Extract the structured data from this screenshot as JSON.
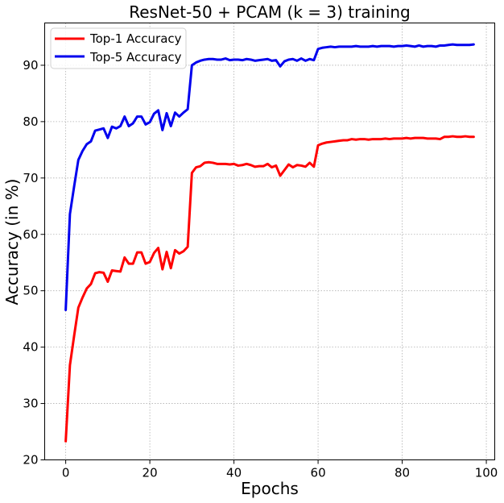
{
  "chart_data": {
    "type": "line",
    "title": "ResNet-50 + PCAM (k = 3) training",
    "xlabel": "Epochs",
    "ylabel": "Accuracy (in %)",
    "xlim": [
      -5,
      102
    ],
    "ylim": [
      20,
      97.5
    ],
    "xticks": [
      0,
      20,
      40,
      60,
      80,
      100
    ],
    "yticks": [
      20,
      30,
      40,
      50,
      60,
      70,
      80,
      90
    ],
    "grid": true,
    "legend_position": "top-left",
    "x": [
      0,
      1,
      2,
      3,
      4,
      5,
      6,
      7,
      8,
      9,
      10,
      11,
      12,
      13,
      14,
      15,
      16,
      17,
      18,
      19,
      20,
      21,
      22,
      23,
      24,
      25,
      26,
      27,
      28,
      29,
      30,
      31,
      32,
      33,
      34,
      35,
      36,
      37,
      38,
      39,
      40,
      41,
      42,
      43,
      44,
      45,
      46,
      47,
      48,
      49,
      50,
      51,
      52,
      53,
      54,
      55,
      56,
      57,
      58,
      59,
      60,
      61,
      62,
      63,
      64,
      65,
      66,
      67,
      68,
      69,
      70,
      71,
      72,
      73,
      74,
      75,
      76,
      77,
      78,
      79,
      80,
      81,
      82,
      83,
      84,
      85,
      86,
      87,
      88,
      89,
      90,
      91,
      92,
      93,
      94,
      95,
      96,
      97
    ],
    "series": [
      {
        "name": "Top-1 Accuracy",
        "color": "#ff0000",
        "values": [
          23.3,
          36.8,
          42.0,
          47.0,
          48.8,
          50.4,
          51.2,
          53.1,
          53.3,
          53.2,
          51.6,
          53.6,
          53.5,
          53.4,
          55.9,
          54.8,
          54.8,
          56.8,
          56.8,
          54.8,
          55.1,
          56.7,
          57.6,
          53.8,
          56.9,
          54.0,
          57.2,
          56.6,
          57.0,
          57.8,
          70.9,
          71.9,
          72.1,
          72.7,
          72.8,
          72.7,
          72.5,
          72.5,
          72.5,
          72.4,
          72.5,
          72.2,
          72.3,
          72.5,
          72.3,
          72.0,
          72.1,
          72.1,
          72.5,
          71.9,
          72.2,
          70.4,
          71.4,
          72.4,
          71.9,
          72.3,
          72.2,
          72.0,
          72.7,
          72.0,
          75.8,
          76.1,
          76.3,
          76.4,
          76.5,
          76.6,
          76.7,
          76.7,
          76.9,
          76.8,
          76.9,
          76.9,
          76.8,
          76.9,
          76.9,
          76.9,
          77.0,
          76.9,
          77.0,
          77.0,
          77.0,
          77.1,
          77.0,
          77.1,
          77.1,
          77.1,
          77.0,
          77.0,
          77.0,
          76.9,
          77.3,
          77.3,
          77.4,
          77.3,
          77.3,
          77.4,
          77.3,
          77.3
        ]
      },
      {
        "name": "Top-5 Accuracy",
        "color": "#0000ee",
        "values": [
          46.6,
          63.6,
          68.5,
          73.2,
          74.8,
          76.0,
          76.5,
          78.4,
          78.6,
          78.8,
          77.1,
          79.1,
          78.8,
          79.2,
          80.9,
          79.2,
          79.7,
          80.9,
          80.9,
          79.5,
          79.9,
          81.4,
          82.0,
          78.5,
          81.5,
          79.2,
          81.6,
          80.9,
          81.6,
          82.2,
          90.0,
          90.5,
          90.8,
          91.0,
          91.1,
          91.1,
          91.0,
          91.0,
          91.2,
          90.9,
          91.0,
          91.0,
          90.9,
          91.1,
          91.0,
          90.8,
          90.9,
          91.0,
          91.1,
          90.8,
          90.9,
          89.8,
          90.7,
          91.0,
          91.1,
          90.8,
          91.2,
          90.8,
          91.1,
          90.9,
          92.9,
          93.1,
          93.2,
          93.3,
          93.2,
          93.3,
          93.3,
          93.3,
          93.3,
          93.4,
          93.3,
          93.3,
          93.3,
          93.4,
          93.3,
          93.4,
          93.4,
          93.4,
          93.3,
          93.4,
          93.4,
          93.5,
          93.4,
          93.3,
          93.5,
          93.3,
          93.4,
          93.4,
          93.3,
          93.5,
          93.5,
          93.6,
          93.7,
          93.6,
          93.6,
          93.6,
          93.6,
          93.7
        ]
      }
    ]
  }
}
